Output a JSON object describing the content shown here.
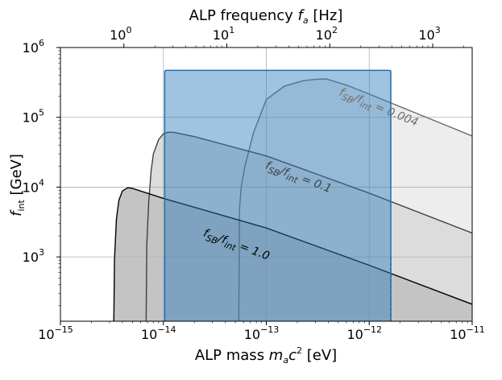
{
  "chart_data": {
    "type": "area",
    "x_scale": "log",
    "y_scale": "log",
    "xlim": [
      1e-15,
      1e-11
    ],
    "ylim": [
      120,
      1000000
    ],
    "xlabel_prefix": "ALP mass ",
    "xlabel_var": "m",
    "xlabel_var_sub": "a",
    "xlabel_var2": "c",
    "xlabel_var2_sup": "2",
    "xlabel_unit": " [eV]",
    "ylabel_var": "f",
    "ylabel_var_sub": "int",
    "ylabel_unit": " [GeV]",
    "top_xlabel_prefix": "ALP frequency ",
    "top_xlabel_var": "f",
    "top_xlabel_var_sub": "a",
    "top_xlabel_unit": " [Hz]",
    "ev_to_hz": 241798924000000,
    "x_ticks": [
      {
        "value": 1e-15,
        "base": "10",
        "exp": "−15"
      },
      {
        "value": 1e-14,
        "base": "10",
        "exp": "−14"
      },
      {
        "value": 1e-13,
        "base": "10",
        "exp": "−13"
      },
      {
        "value": 1e-12,
        "base": "10",
        "exp": "−12"
      },
      {
        "value": 1e-11,
        "base": "10",
        "exp": "−11"
      }
    ],
    "y_ticks": [
      {
        "value": 1000,
        "base": "10",
        "exp": "3"
      },
      {
        "value": 10000,
        "base": "10",
        "exp": "4"
      },
      {
        "value": 100000,
        "base": "10",
        "exp": "5"
      },
      {
        "value": 1000000,
        "base": "10",
        "exp": "6"
      }
    ],
    "top_ticks": [
      {
        "value": 1,
        "base": "10",
        "exp": "0"
      },
      {
        "value": 10,
        "base": "10",
        "exp": "1"
      },
      {
        "value": 100,
        "base": "10",
        "exp": "2"
      },
      {
        "value": 1000,
        "base": "10",
        "exp": "3"
      }
    ],
    "grid": true,
    "series": [
      {
        "name": "fSB/fint = 0.004",
        "label_prefix": "f",
        "label_sub1": "SB",
        "label_mid": "/f",
        "label_sub2": "int",
        "label_value": " = 0.004",
        "label_at": [
          1.2e-12,
          125000
        ],
        "x": [
          5.4e-14,
          5.5e-14,
          5.7e-14,
          6.2e-14,
          7.5e-14,
          1e-13,
          1.5e-13,
          2.3e-13,
          3e-13,
          3.8e-13,
          6e-13,
          1e-12,
          1e-11
        ],
        "y": [
          120,
          5000,
          10000,
          20000,
          60000,
          180000,
          280000,
          335000,
          350000,
          355000,
          290000,
          215000,
          54000
        ],
        "fill": "#ededed",
        "stroke": "#6e6e6e"
      },
      {
        "name": "fSB/fint = 0.1",
        "label_prefix": "f",
        "label_sub1": "SB",
        "label_mid": "/f",
        "label_sub2": "int",
        "label_value": " = 0.1",
        "label_at": [
          2e-13,
          12500
        ],
        "x": [
          6.8e-15,
          6.9e-15,
          7.2e-15,
          7.6e-15,
          8e-15,
          9e-15,
          1e-14,
          1.1e-14,
          1.25e-14,
          2e-14,
          1e-13,
          1e-12,
          1e-11
        ],
        "y": [
          120,
          1500,
          6000,
          17000,
          30000,
          48000,
          58000,
          61000,
          61000,
          53000,
          28000,
          8200,
          2200
        ],
        "fill": "#dcdcdc",
        "stroke": "#404040"
      },
      {
        "name": "fSB/fint = 1.0",
        "label_prefix": "f",
        "label_sub1": "SB",
        "label_mid": "/f",
        "label_sub2": "int",
        "label_value": " = 1.0",
        "label_at": [
          5e-14,
          1350
        ],
        "x": [
          3.3e-15,
          3.35e-15,
          3.5e-15,
          3.7e-15,
          4e-15,
          4.5e-15,
          5e-15,
          1e-14,
          1e-13,
          1e-12,
          1e-11
        ],
        "y": [
          120,
          900,
          3500,
          6500,
          8800,
          9800,
          9600,
          6900,
          2600,
          760,
          210
        ],
        "fill": "#c4c4c4",
        "stroke": "#000000"
      }
    ],
    "box": {
      "x0": 1.03e-14,
      "x1": 1.62e-12,
      "y_top": 470000,
      "fill": "#2b7bbb",
      "fill_opacity": 0.45,
      "stroke": "#1f6fb4"
    }
  }
}
